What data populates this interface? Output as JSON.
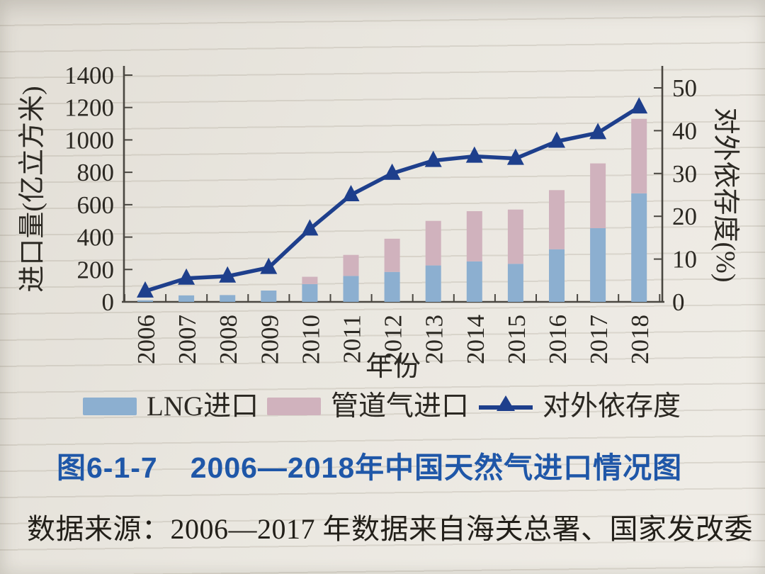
{
  "page": {
    "figure_label": "图6-1-7",
    "figure_title": "2006—2018年中国天然气进口情况图",
    "source_note": "数据来源：2006—2017 年数据来自海关总署、国家发改委"
  },
  "colors": {
    "paper": "#eae7e0",
    "lng_bar": "#8cafd0",
    "pipeline_bar": "#d0b2bd",
    "dependence_line": "#1e3f8c",
    "caption_blue": "#1f57a8",
    "axis": "#4a4741",
    "text": "#2b2822"
  },
  "chart_data": {
    "type": "bar",
    "subtype": "stacked-bars-with-line",
    "categories": [
      "2006",
      "2007",
      "2008",
      "2009",
      "2010",
      "2011",
      "2012",
      "2013",
      "2014",
      "2015",
      "2016",
      "2017",
      "2018"
    ],
    "series": [
      {
        "name": "LNG进口",
        "type": "bar",
        "stack": "imports",
        "axis": "left",
        "values": [
          10,
          40,
          42,
          70,
          110,
          160,
          185,
          225,
          250,
          235,
          325,
          455,
          670
        ]
      },
      {
        "name": "管道气进口",
        "type": "bar",
        "stack": "imports",
        "axis": "left",
        "values": [
          0,
          0,
          0,
          0,
          45,
          130,
          205,
          275,
          310,
          335,
          365,
          400,
          460
        ]
      },
      {
        "name": "对外依存度",
        "type": "line",
        "marker": "triangle-up",
        "axis": "right",
        "values": [
          2.5,
          5.5,
          6,
          8,
          17,
          25,
          30,
          33,
          34,
          33.5,
          37.5,
          39.5,
          45.5
        ]
      }
    ],
    "xlabel": "年份",
    "ylabel_left": "进口量(亿立方米)",
    "ylabel_right": "对外依存度(%)",
    "ylim_left": [
      0,
      1400
    ],
    "yticks_left": [
      0,
      200,
      400,
      600,
      800,
      1000,
      1200,
      1400
    ],
    "ylim_right": [
      0,
      50
    ],
    "yticks_right": [
      0,
      10,
      20,
      30,
      40,
      50
    ],
    "grid": false,
    "legend_position": "bottom"
  }
}
